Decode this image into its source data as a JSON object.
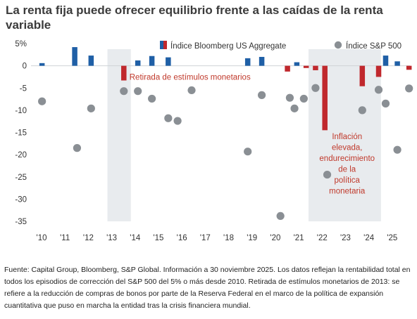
{
  "title": "La renta fija puede ofrecer equilibrio frente a las caídas de la renta variable",
  "source": "Fuente: Capital Group, Bloomberg, S&P Global. Información a 30 noviembre 2025. Los datos reflejan la rentabilidad total en todos los episodios de corrección del S&P 500 del 5% o más desde 2010. Retirada de estímulos monetarios de 2013: se refiere a la reducción de compras de bonos por parte de la Reserva Federal en el marco de la política de expansión cuantitativa que puso en marcha la entidad tras la crisis financiera mundial.",
  "colors": {
    "bond_positive": "#1f5fa6",
    "bond_negative": "#c0282d",
    "stock": "#8a8f94",
    "shade": "#e8ebee"
  },
  "chart_data": {
    "type": "bar",
    "ylim": [
      -35,
      5
    ],
    "yticks": [
      "5%",
      "0",
      "-5",
      "-10",
      "-15",
      "-20",
      "-25",
      "-30",
      "-35"
    ],
    "yticks_values": [
      5,
      0,
      -5,
      -10,
      -15,
      -20,
      -25,
      -30,
      -35
    ],
    "xlim": [
      2010,
      2026
    ],
    "xticks": [
      "'10",
      "'11",
      "'12",
      "'13",
      "'14",
      "'15",
      "'16",
      "'17",
      "'18",
      "'19",
      "'20",
      "'21",
      "'22",
      "'23",
      "'24",
      "'25"
    ],
    "xticks_values": [
      2010,
      2011,
      2012,
      2013,
      2014,
      2015,
      2016,
      2017,
      2018,
      2019,
      2020,
      2021,
      2022,
      2023,
      2024,
      2025
    ],
    "legend": [
      {
        "name": "Índice Bloomberg US Aggregate",
        "marker": "bar"
      },
      {
        "name": "Índice S&P 500",
        "marker": "dot"
      }
    ],
    "shaded_periods": [
      [
        2013.0,
        2014.0
      ],
      [
        2021.6,
        2024.7
      ]
    ],
    "annotations": [
      {
        "text": "Retirada de estímulos monetarios",
        "x": 2014.0,
        "y": -2.5
      },
      {
        "text": [
          "Inflación",
          "elevada,",
          "endurecimiento",
          "de la",
          "política",
          "monetaria"
        ],
        "x": 2023.25,
        "y": -16.5
      }
    ],
    "series": [
      {
        "name": "Índice Bloomberg US Aggregate",
        "x": [
          2010.2,
          2011.6,
          2012.3,
          2013.7,
          2014.3,
          2014.9,
          2015.6,
          2019.0,
          2019.6,
          2020.7,
          2021.1,
          2021.5,
          2021.9,
          2022.3,
          2023.9,
          2024.6,
          2024.9,
          2025.4,
          2025.9
        ],
        "values": [
          0.6,
          4.2,
          2.3,
          -3.3,
          1.2,
          2.2,
          1.9,
          1.7,
          2.0,
          -1.3,
          0.8,
          -0.5,
          -1.0,
          -14.5,
          -4.6,
          -2.5,
          2.3,
          1.0,
          -0.9
        ]
      },
      {
        "name": "Índice S&P 500",
        "x": [
          2010.2,
          2011.7,
          2012.3,
          2013.7,
          2014.3,
          2014.9,
          2015.6,
          2016.0,
          2016.6,
          2019.0,
          2019.6,
          2020.4,
          2020.8,
          2021.0,
          2021.4,
          2021.9,
          2022.4,
          2023.9,
          2024.6,
          2024.9,
          2025.4,
          2025.9
        ],
        "values": [
          -8.0,
          -18.5,
          -9.6,
          -5.7,
          -5.7,
          -7.4,
          -11.8,
          -12.4,
          -5.5,
          -19.3,
          -6.6,
          -33.8,
          -7.2,
          -9.6,
          -7.4,
          -5.0,
          -24.5,
          -10.0,
          -5.4,
          -8.5,
          -18.9,
          -5.1
        ]
      }
    ]
  }
}
